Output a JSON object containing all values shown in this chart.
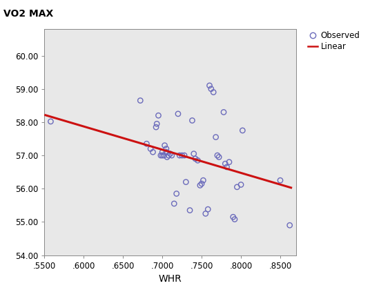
{
  "title": "VO2 MAX",
  "xlabel": "WHR",
  "ylabel": "",
  "xlim": [
    0.55,
    0.87
  ],
  "ylim": [
    54.0,
    60.8
  ],
  "xticks": [
    0.55,
    0.6,
    0.65,
    0.7,
    0.75,
    0.8,
    0.85
  ],
  "yticks": [
    54.0,
    55.0,
    56.0,
    57.0,
    58.0,
    59.0,
    60.0
  ],
  "xtick_labels": [
    ".5500",
    ".6000",
    ".6500",
    ".7000",
    ".7500",
    ".8000",
    ".8500"
  ],
  "ytick_labels": [
    "54.00",
    "55.00",
    "56.00",
    "57.00",
    "58.00",
    "59.00",
    "60.00"
  ],
  "scatter_x": [
    0.558,
    0.672,
    0.68,
    0.685,
    0.688,
    0.692,
    0.693,
    0.695,
    0.698,
    0.7,
    0.7,
    0.702,
    0.703,
    0.705,
    0.705,
    0.706,
    0.708,
    0.71,
    0.712,
    0.715,
    0.718,
    0.72,
    0.722,
    0.725,
    0.728,
    0.73,
    0.735,
    0.738,
    0.74,
    0.742,
    0.745,
    0.748,
    0.75,
    0.752,
    0.755,
    0.758,
    0.76,
    0.762,
    0.765,
    0.768,
    0.77,
    0.772,
    0.778,
    0.78,
    0.782,
    0.785,
    0.79,
    0.792,
    0.795,
    0.8,
    0.802,
    0.85,
    0.862
  ],
  "scatter_y": [
    58.02,
    58.65,
    57.35,
    57.2,
    57.1,
    57.85,
    57.95,
    58.2,
    57.0,
    57.0,
    57.1,
    57.0,
    57.3,
    57.1,
    57.2,
    56.95,
    57.0,
    57.05,
    57.0,
    55.55,
    55.85,
    58.25,
    57.0,
    57.0,
    57.0,
    56.2,
    55.35,
    58.05,
    57.05,
    56.9,
    56.85,
    56.1,
    56.15,
    56.25,
    55.25,
    55.38,
    59.1,
    59.0,
    58.9,
    57.55,
    57.0,
    56.95,
    58.3,
    56.75,
    56.65,
    56.8,
    55.15,
    55.08,
    56.05,
    56.12,
    57.75,
    56.25,
    54.9
  ],
  "line_x": [
    0.55,
    0.865
  ],
  "line_y": [
    58.22,
    56.02
  ],
  "scatter_edgecolor": "#6b6bbb",
  "line_color": "#cc1111",
  "plot_bg_color": "#e8e8e8",
  "fig_bg_color": "#ffffff",
  "legend_observed": "Observed",
  "legend_linear": "Linear",
  "marker_size": 28,
  "line_width": 2.2
}
